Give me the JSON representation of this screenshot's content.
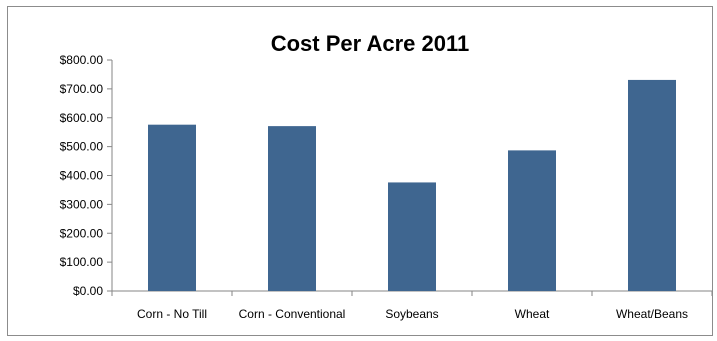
{
  "chart_data": {
    "type": "bar",
    "title": "Cost Per Acre 2011",
    "xlabel": "",
    "ylabel": "",
    "categories": [
      "Corn - No Till",
      "Corn - Conventional",
      "Soybeans",
      "Wheat",
      "Wheat/Beans"
    ],
    "values": [
      576,
      571,
      376,
      487,
      731
    ],
    "ylim": [
      0,
      800
    ],
    "yticks": [
      0,
      100,
      200,
      300,
      400,
      500,
      600,
      700,
      800
    ],
    "ytick_labels": [
      "$0.00",
      "$100.00",
      "$200.00",
      "$300.00",
      "$400.00",
      "$500.00",
      "$600.00",
      "$700.00",
      "$800.00"
    ],
    "grid": false,
    "legend": "none",
    "bar_color": "#3f6690"
  }
}
